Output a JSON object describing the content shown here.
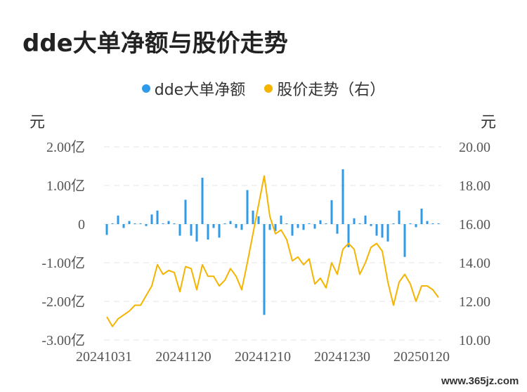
{
  "title": "dde大单净额与股价走势",
  "legend": [
    {
      "label": "dde大单净额",
      "color": "#2f9ae8"
    },
    {
      "label": "股价走势（右）",
      "color": "#f5b400"
    }
  ],
  "units": {
    "left": "元",
    "right": "元"
  },
  "watermark": "www.365jz.com",
  "chart_data": {
    "type": "bar+line",
    "x_labels": [
      "20241031",
      "20241120",
      "20241210",
      "20241230",
      "20250120"
    ],
    "left_axis": {
      "ticks": [
        "2.00亿",
        "1.00亿",
        "0",
        "-1.00亿",
        "-2.00亿",
        "-3.00亿"
      ],
      "ylim": [
        -3.0,
        2.0
      ],
      "unit": "亿元"
    },
    "right_axis": {
      "ticks": [
        "20.00",
        "18.00",
        "16.00",
        "14.00",
        "12.00",
        "10.00"
      ],
      "ylim": [
        10.0,
        20.0
      ],
      "unit": "元"
    },
    "grid": true,
    "legend_position": "top",
    "series": [
      {
        "name": "dde大单净额",
        "type": "bar",
        "color": "#2f9ae8",
        "values": [
          -0.28,
          0.02,
          0.22,
          -0.1,
          0.08,
          0.02,
          0.02,
          -0.05,
          0.25,
          0.35,
          0.02,
          0.08,
          0.02,
          -0.3,
          0.63,
          -0.3,
          -0.45,
          1.2,
          -0.4,
          -0.1,
          -0.35,
          0.02,
          0.08,
          -0.1,
          -0.15,
          0.88,
          0.35,
          0.2,
          -2.35,
          -0.15,
          -0.18,
          0.22,
          0.02,
          -0.3,
          -0.1,
          -0.15,
          0.02,
          -0.12,
          0.1,
          0.02,
          0.62,
          -0.25,
          1.42,
          -0.6,
          0.15,
          0.02,
          0.22,
          -0.05,
          -0.3,
          -0.35,
          -0.45,
          0.02,
          0.35,
          -0.85,
          0.02,
          -0.08,
          0.4,
          0.08,
          0.02,
          0.02
        ]
      },
      {
        "name": "股价走势（右）",
        "type": "line",
        "color": "#f5b400",
        "values": [
          11.2,
          10.7,
          11.1,
          11.3,
          11.5,
          11.8,
          11.8,
          12.3,
          12.8,
          13.9,
          13.4,
          13.6,
          13.5,
          12.5,
          13.8,
          13.7,
          12.6,
          13.9,
          13.3,
          13.3,
          12.8,
          13.1,
          13.7,
          13.3,
          12.6,
          14.0,
          15.5,
          17.0,
          18.5,
          16.4,
          15.5,
          15.7,
          15.2,
          14.1,
          14.3,
          13.9,
          14.2,
          12.9,
          13.2,
          12.7,
          14.0,
          13.4,
          14.7,
          15.0,
          14.7,
          13.4,
          14.0,
          14.8,
          15.0,
          14.6,
          13.0,
          11.8,
          13.0,
          13.4,
          12.9,
          12.0,
          12.8,
          12.8,
          12.6,
          12.2
        ]
      }
    ]
  }
}
